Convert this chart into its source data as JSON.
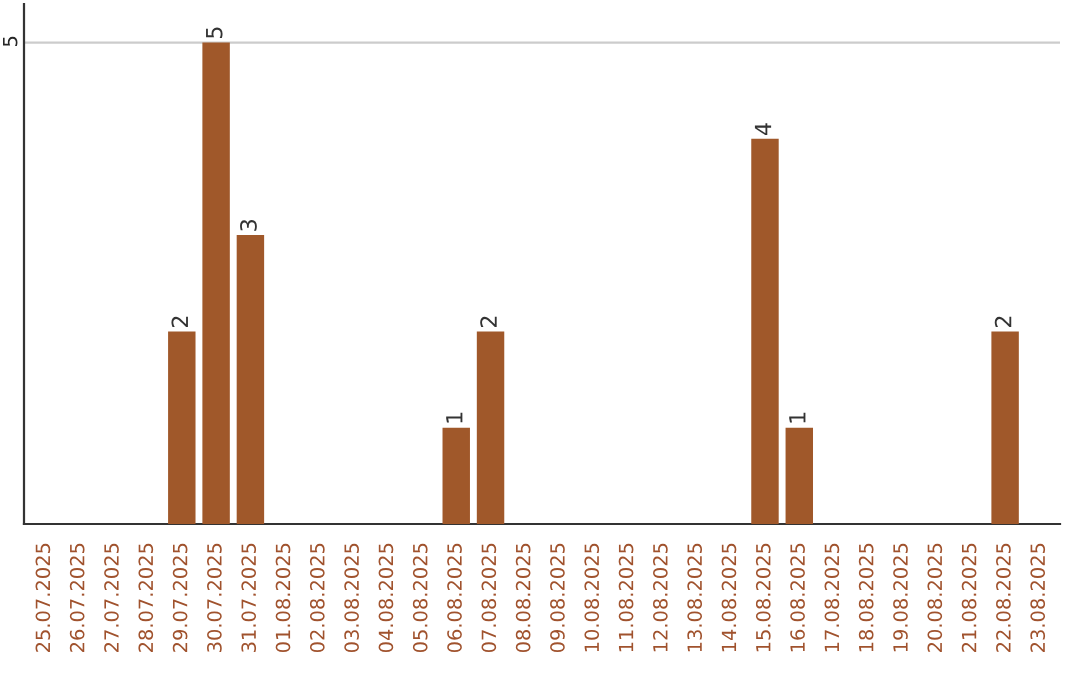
{
  "chart_data": {
    "type": "bar",
    "categories": [
      "25.07.2025",
      "26.07.2025",
      "27.07.2025",
      "28.07.2025",
      "29.07.2025",
      "30.07.2025",
      "31.07.2025",
      "01.08.2025",
      "02.08.2025",
      "03.08.2025",
      "04.08.2025",
      "05.08.2025",
      "06.08.2025",
      "07.08.2025",
      "08.08.2025",
      "09.08.2025",
      "10.08.2025",
      "11.08.2025",
      "12.08.2025",
      "13.08.2025",
      "14.08.2025",
      "15.08.2025",
      "16.08.2025",
      "17.08.2025",
      "18.08.2025",
      "19.08.2025",
      "20.08.2025",
      "21.08.2025",
      "22.08.2025",
      "23.08.2025"
    ],
    "values": [
      0,
      0,
      0,
      0,
      2,
      5,
      3,
      0,
      0,
      0,
      0,
      0,
      1,
      2,
      0,
      0,
      0,
      0,
      0,
      0,
      0,
      4,
      1,
      0,
      0,
      0,
      0,
      0,
      2,
      0
    ],
    "value_labels": [
      null,
      null,
      null,
      null,
      "2",
      "5",
      "3",
      null,
      null,
      null,
      null,
      null,
      "1",
      "2",
      null,
      null,
      null,
      null,
      null,
      null,
      null,
      "4",
      "1",
      null,
      null,
      null,
      null,
      null,
      "2",
      null
    ],
    "color": "#a0582a",
    "ylim": [
      0,
      5.4
    ],
    "yticks": [
      5
    ],
    "grid": "y"
  }
}
